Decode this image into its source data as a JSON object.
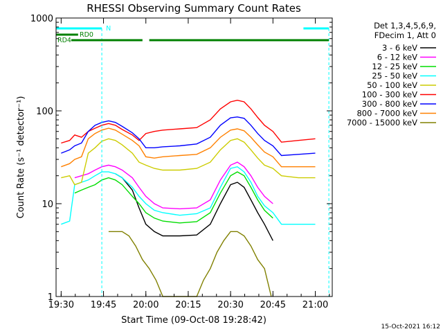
{
  "chart_data": {
    "type": "line",
    "title": "RHESSI Observing Summary Count Rates",
    "xlabel": "Start Time (09-Oct-08 19:28:42)",
    "ylabel": "Count Rate (s⁻¹ detector⁻¹)",
    "yscale": "log",
    "xlim": [
      19.47,
      21.1
    ],
    "ylim": [
      1,
      1000
    ],
    "x_ticks": [
      "19:30",
      "19:45",
      "20:00",
      "20:15",
      "20:30",
      "20:45",
      "21:00"
    ],
    "x_tick_hours": [
      19.5,
      19.75,
      20.0,
      20.25,
      20.5,
      20.75,
      21.0
    ],
    "y_ticks": [
      "1",
      "10",
      "100",
      "1000"
    ],
    "y_tick_values": [
      1,
      10,
      100,
      1000
    ],
    "legend_header": [
      "Det 1,3,4,5,6,9,",
      "FDecim 1, Att 0"
    ],
    "legend_position": "right",
    "series": [
      {
        "name": "3 - 6 keV",
        "color": "#000000",
        "x": [
          19.82,
          19.86,
          19.92,
          19.96,
          20.0,
          20.05,
          20.1,
          20.2,
          20.3,
          20.38,
          20.44,
          20.5,
          20.54,
          20.58,
          20.62,
          20.66,
          20.7,
          20.75
        ],
        "values": [
          21,
          19,
          14,
          9,
          6,
          5,
          4.5,
          4.5,
          4.6,
          6,
          10,
          16,
          17,
          15,
          11,
          8,
          6,
          4
        ]
      },
      {
        "name": "6 - 12 keV",
        "color": "#ff00ff",
        "x": [
          19.58,
          19.62,
          19.66,
          19.7,
          19.74,
          19.78,
          19.82,
          19.86,
          19.92,
          19.96,
          20.0,
          20.05,
          20.1,
          20.2,
          20.3,
          20.38,
          20.44,
          20.5,
          20.54,
          20.58,
          20.62,
          20.66,
          20.7,
          20.75
        ],
        "values": [
          19,
          20,
          21,
          23,
          25,
          26,
          25,
          23,
          19,
          15,
          12,
          10,
          9,
          8.8,
          9,
          11,
          18,
          26,
          28,
          25,
          20,
          15,
          12,
          10
        ]
      },
      {
        "name": "12 - 25 keV",
        "color": "#00dd00",
        "x": [
          19.58,
          19.62,
          19.66,
          19.7,
          19.74,
          19.78,
          19.82,
          19.86,
          19.92,
          19.96,
          20.0,
          20.05,
          20.1,
          20.2,
          20.3,
          20.38,
          20.44,
          20.5,
          20.54,
          20.58,
          20.62,
          20.66,
          20.7,
          20.75
        ],
        "values": [
          13,
          14,
          15,
          16,
          18,
          19,
          18,
          16,
          12,
          10,
          8,
          7,
          6.5,
          6.2,
          6.4,
          8,
          13,
          20,
          22,
          20,
          15,
          11,
          8.5,
          7
        ]
      },
      {
        "name": "25 - 50 keV",
        "color": "#00ffff",
        "x": [
          19.5,
          19.55,
          19.58,
          19.62,
          19.66,
          19.7,
          19.74,
          19.78,
          19.82,
          19.86,
          19.92,
          19.96,
          20.0,
          20.05,
          20.1,
          20.2,
          20.3,
          20.38,
          20.44,
          20.5,
          20.54,
          20.58,
          20.62,
          20.66,
          20.7,
          20.75,
          20.8,
          20.9,
          21.0
        ],
        "values": [
          6,
          6.5,
          16,
          17,
          18,
          20,
          22,
          22,
          21,
          19,
          15,
          12,
          10,
          8.5,
          8,
          7.5,
          7.8,
          9,
          15,
          24,
          25,
          22,
          17,
          12,
          9.5,
          8,
          6,
          6,
          6
        ]
      },
      {
        "name": "50 - 100 keV",
        "color": "#cccc00",
        "x": [
          19.5,
          19.55,
          19.58,
          19.62,
          19.66,
          19.7,
          19.74,
          19.78,
          19.82,
          19.86,
          19.92,
          19.96,
          20.0,
          20.05,
          20.1,
          20.2,
          20.3,
          20.38,
          20.44,
          20.5,
          20.54,
          20.58,
          20.62,
          20.66,
          20.7,
          20.75,
          20.8,
          20.9,
          21.0
        ],
        "values": [
          19,
          20,
          16,
          17,
          35,
          40,
          47,
          50,
          48,
          43,
          35,
          28,
          26,
          24,
          23,
          23,
          24,
          28,
          38,
          48,
          50,
          46,
          38,
          31,
          26,
          24,
          20,
          19,
          19
        ]
      },
      {
        "name": "100 - 300 keV",
        "color": "#ff0000",
        "x": [
          19.5,
          19.55,
          19.58,
          19.62,
          19.66,
          19.7,
          19.74,
          19.78,
          19.82,
          19.86,
          19.92,
          19.96,
          20.0,
          20.05,
          20.1,
          20.2,
          20.3,
          20.38,
          20.44,
          20.5,
          20.54,
          20.58,
          20.62,
          20.66,
          20.7,
          20.75,
          20.8,
          20.9,
          21.0
        ],
        "values": [
          45,
          48,
          55,
          52,
          60,
          65,
          70,
          73,
          70,
          63,
          55,
          48,
          57,
          60,
          62,
          64,
          66,
          80,
          105,
          125,
          130,
          125,
          105,
          85,
          70,
          60,
          46,
          48,
          50
        ]
      },
      {
        "name": "300 - 800 keV",
        "color": "#0000ff",
        "x": [
          19.5,
          19.55,
          19.58,
          19.62,
          19.66,
          19.7,
          19.74,
          19.78,
          19.82,
          19.86,
          19.92,
          19.96,
          20.0,
          20.05,
          20.1,
          20.2,
          20.3,
          20.38,
          20.44,
          20.5,
          20.54,
          20.58,
          20.62,
          20.66,
          20.7,
          20.75,
          20.8,
          20.9,
          21.0
        ],
        "values": [
          35,
          38,
          42,
          45,
          60,
          70,
          75,
          78,
          75,
          68,
          58,
          50,
          40,
          40,
          41,
          42,
          44,
          52,
          70,
          84,
          86,
          83,
          70,
          57,
          48,
          42,
          33,
          34,
          35
        ]
      },
      {
        "name": "800 - 7000 keV",
        "color": "#ff8000",
        "x": [
          19.5,
          19.55,
          19.58,
          19.62,
          19.66,
          19.7,
          19.74,
          19.78,
          19.82,
          19.86,
          19.92,
          19.96,
          20.0,
          20.05,
          20.1,
          20.2,
          20.3,
          20.38,
          20.44,
          20.5,
          20.54,
          20.58,
          20.62,
          20.66,
          20.7,
          20.75,
          20.8,
          20.9,
          21.0
        ],
        "values": [
          25,
          27,
          30,
          32,
          50,
          57,
          62,
          65,
          62,
          56,
          48,
          42,
          32,
          31,
          32,
          33,
          34,
          40,
          52,
          62,
          64,
          61,
          52,
          43,
          36,
          32,
          25,
          25,
          25
        ]
      },
      {
        "name": "7000 - 15000 keV",
        "color": "#808000",
        "x": [
          19.78,
          19.82,
          19.86,
          19.9,
          19.94,
          19.98,
          20.02,
          20.06,
          20.1,
          20.3,
          20.34,
          20.38,
          20.42,
          20.46,
          20.5,
          20.54,
          20.58,
          20.62,
          20.66,
          20.7,
          20.74
        ],
        "values": [
          5,
          5,
          5,
          4.5,
          3.5,
          2.5,
          2,
          1.5,
          1,
          1,
          1.5,
          2,
          3,
          4,
          5,
          5,
          4.5,
          3.5,
          2.5,
          2,
          1
        ]
      }
    ],
    "annotations": [
      {
        "label": "N",
        "color": "#00ffff",
        "kind": "night",
        "x_ranges": [
          [
            19.47,
            19.74
          ],
          [
            20.93,
            21.08
          ]
        ]
      },
      {
        "label": "RD0",
        "color": "#008000",
        "kind": "data",
        "x_ranges": [
          [
            19.47,
            19.6
          ]
        ]
      },
      {
        "label": "RD4",
        "color": "#008000",
        "kind": "data",
        "x_ranges": [
          [
            19.56,
            19.98
          ],
          [
            20.02,
            21.08
          ]
        ]
      }
    ],
    "footer_date": "15-Oct-2021 16:12",
    "grid": false
  }
}
